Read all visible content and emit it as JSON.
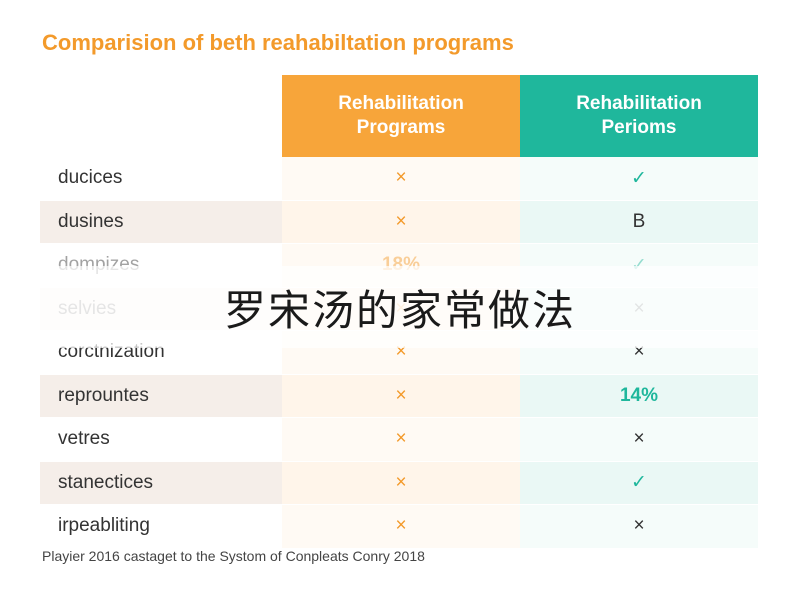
{
  "title": "Comparision of beth reahabiltation programs",
  "overlay_text": "罗宋汤的家常做法",
  "footer": "Playier 2016 castaget to the Systom of Conpleats Conry 2018",
  "colors": {
    "orange": "#f7a53a",
    "teal": "#1fb79c"
  },
  "chart_data": {
    "type": "table",
    "columns": [
      {
        "label": "Rehabilitation Programs"
      },
      {
        "label": "Rehabilitation Perioms"
      }
    ],
    "rows": [
      {
        "label": "ducices",
        "a": "×",
        "a_kind": "x-orange",
        "b": "✓",
        "b_kind": "check"
      },
      {
        "label": "dusines",
        "a": "×",
        "a_kind": "x-orange",
        "b": "B",
        "b_kind": "letter"
      },
      {
        "label": "dompizes",
        "a": "18%",
        "a_kind": "pct-orange",
        "b": "✓",
        "b_kind": "check",
        "faded": true
      },
      {
        "label": "selvies",
        "a": "×",
        "a_kind": "x-orange",
        "b": "×",
        "b_kind": "x-dark",
        "faded": true
      },
      {
        "label": "corctnization",
        "a": "×",
        "a_kind": "x-orange",
        "b": "×",
        "b_kind": "x-dark"
      },
      {
        "label": "reprountes",
        "a": "×",
        "a_kind": "x-orange",
        "b": "14%",
        "b_kind": "pct-teal"
      },
      {
        "label": "vetres",
        "a": "×",
        "a_kind": "x-orange",
        "b": "×",
        "b_kind": "x-dark"
      },
      {
        "label": "stanectices",
        "a": "×",
        "a_kind": "x-orange",
        "b": "✓",
        "b_kind": "check"
      },
      {
        "label": "irpeabliting",
        "a": "×",
        "a_kind": "x-orange",
        "b": "×",
        "b_kind": "x-dark"
      }
    ]
  }
}
